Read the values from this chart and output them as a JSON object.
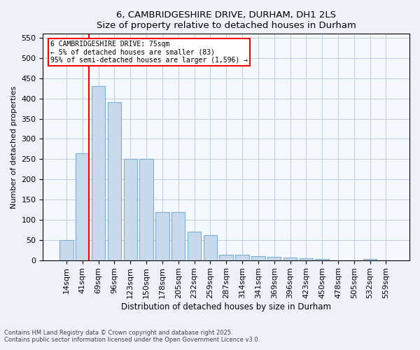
{
  "title1": "6, CAMBRIDGESHIRE DRIVE, DURHAM, DH1 2LS",
  "title2": "Size of property relative to detached houses in Durham",
  "xlabel": "Distribution of detached houses by size in Durham",
  "ylabel": "Number of detached properties",
  "categories": [
    "14sqm",
    "41sqm",
    "69sqm",
    "96sqm",
    "123sqm",
    "150sqm",
    "178sqm",
    "205sqm",
    "232sqm",
    "259sqm",
    "287sqm",
    "314sqm",
    "341sqm",
    "369sqm",
    "396sqm",
    "423sqm",
    "450sqm",
    "478sqm",
    "505sqm",
    "532sqm",
    "559sqm"
  ],
  "values": [
    50,
    265,
    430,
    390,
    250,
    250,
    118,
    118,
    70,
    62,
    13,
    13,
    10,
    8,
    7,
    5,
    3,
    0,
    0,
    2,
    0
  ],
  "bar_color": "#c9d9ec",
  "bar_edge_color": "#7aaed6",
  "vline_x": 1,
  "vline_color": "red",
  "annotation_text": "6 CAMBRIDGESHIRE DRIVE: 75sqm\n← 5% of detached houses are smaller (83)\n95% of semi-detached houses are larger (1,596) →",
  "annotation_box_color": "white",
  "annotation_box_edge_color": "red",
  "ylim": [
    0,
    560
  ],
  "yticks": [
    0,
    50,
    100,
    150,
    200,
    250,
    300,
    350,
    400,
    450,
    500,
    550
  ],
  "footer1": "Contains HM Land Registry data © Crown copyright and database right 2025.",
  "footer2": "Contains public sector information licensed under the Open Government Licence v3.0.",
  "bg_color": "#eef2f8",
  "plot_bg_color": "#f5f8fd"
}
